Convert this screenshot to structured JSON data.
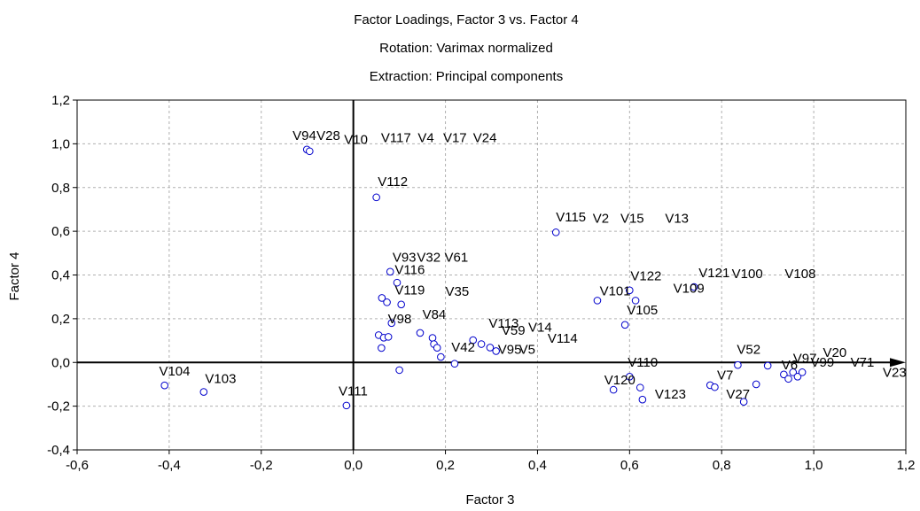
{
  "chart_data": {
    "type": "scatter",
    "title": "Factor Loadings, Factor 3 vs. Factor 4",
    "subtitle": "Rotation: Varimax normalized",
    "subtitle2": "Extraction: Principal components",
    "xlabel": "Factor 3",
    "ylabel": "Factor 4",
    "xlim": [
      -0.6,
      1.2
    ],
    "ylim": [
      -0.4,
      1.2
    ],
    "grid": true,
    "x_ticks": [
      -0.6,
      -0.4,
      -0.2,
      0.0,
      0.2,
      0.4,
      0.6,
      0.8,
      1.0,
      1.2
    ],
    "y_ticks": [
      -0.4,
      -0.2,
      0.0,
      0.2,
      0.4,
      0.6,
      0.8,
      1.0,
      1.2
    ],
    "x_tick_labels": [
      "-0,6",
      "-0,4",
      "-0,2",
      "0,0",
      "0,2",
      "0,4",
      "0,6",
      "0,8",
      "1,0",
      "1,2"
    ],
    "y_tick_labels": [
      "-0,4",
      "-0,2",
      "0,0",
      "0,2",
      "0,4",
      "0,6",
      "0,8",
      "1,0",
      "1,2"
    ],
    "colors": {
      "point": "#0000cc",
      "grid": "#b0b0b0",
      "axis": "#000000"
    },
    "points": [
      {
        "x": -0.101,
        "y": 0.974
      },
      {
        "x": -0.095,
        "y": 0.966
      },
      {
        "x": 0.05,
        "y": 0.755
      },
      {
        "x": 0.44,
        "y": 0.595
      },
      {
        "x": 0.08,
        "y": 0.415
      },
      {
        "x": 0.095,
        "y": 0.365
      },
      {
        "x": 0.062,
        "y": 0.295
      },
      {
        "x": 0.073,
        "y": 0.275
      },
      {
        "x": 0.104,
        "y": 0.265
      },
      {
        "x": 0.083,
        "y": 0.18
      },
      {
        "x": 0.145,
        "y": 0.135
      },
      {
        "x": 0.055,
        "y": 0.125
      },
      {
        "x": 0.066,
        "y": 0.113
      },
      {
        "x": 0.076,
        "y": 0.117
      },
      {
        "x": 0.172,
        "y": 0.112
      },
      {
        "x": 0.175,
        "y": 0.084
      },
      {
        "x": 0.182,
        "y": 0.067
      },
      {
        "x": 0.061,
        "y": 0.066
      },
      {
        "x": 0.19,
        "y": 0.025
      },
      {
        "x": 0.22,
        "y": -0.006
      },
      {
        "x": 0.1,
        "y": -0.035
      },
      {
        "x": 0.26,
        "y": 0.102
      },
      {
        "x": 0.278,
        "y": 0.084
      },
      {
        "x": 0.297,
        "y": 0.068
      },
      {
        "x": 0.31,
        "y": 0.052
      },
      {
        "x": 0.53,
        "y": 0.283
      },
      {
        "x": 0.6,
        "y": 0.33
      },
      {
        "x": 0.613,
        "y": 0.283
      },
      {
        "x": 0.59,
        "y": 0.172
      },
      {
        "x": 0.74,
        "y": 0.345
      },
      {
        "x": 0.565,
        "y": -0.125
      },
      {
        "x": 0.6,
        "y": -0.065
      },
      {
        "x": 0.623,
        "y": -0.115
      },
      {
        "x": 0.628,
        "y": -0.17
      },
      {
        "x": 0.775,
        "y": -0.104
      },
      {
        "x": 0.785,
        "y": -0.113
      },
      {
        "x": 0.835,
        "y": -0.012
      },
      {
        "x": 0.848,
        "y": -0.18
      },
      {
        "x": 0.875,
        "y": -0.1
      },
      {
        "x": 0.9,
        "y": -0.015
      },
      {
        "x": 0.935,
        "y": -0.055
      },
      {
        "x": 0.945,
        "y": -0.075
      },
      {
        "x": 0.955,
        "y": -0.045
      },
      {
        "x": 0.965,
        "y": -0.065
      },
      {
        "x": 0.975,
        "y": -0.045
      },
      {
        "x": -0.41,
        "y": -0.105
      },
      {
        "x": -0.325,
        "y": -0.135
      },
      {
        "x": -0.015,
        "y": -0.197
      }
    ],
    "labels": [
      {
        "text": "V94",
        "x": -0.132,
        "y": 1.018
      },
      {
        "text": "V28",
        "x": -0.08,
        "y": 1.018
      },
      {
        "text": "V10",
        "x": -0.02,
        "y": 1.0
      },
      {
        "text": "V117",
        "x": 0.06,
        "y": 1.008
      },
      {
        "text": "V4",
        "x": 0.14,
        "y": 1.008
      },
      {
        "text": "V17",
        "x": 0.195,
        "y": 1.008
      },
      {
        "text": "V24",
        "x": 0.26,
        "y": 1.008
      },
      {
        "text": "V112",
        "x": 0.053,
        "y": 0.807
      },
      {
        "text": "V115",
        "x": 0.44,
        "y": 0.645
      },
      {
        "text": "V2",
        "x": 0.52,
        "y": 0.64
      },
      {
        "text": "V15",
        "x": 0.58,
        "y": 0.64
      },
      {
        "text": "V13",
        "x": 0.677,
        "y": 0.64
      },
      {
        "text": "V93",
        "x": 0.085,
        "y": 0.46
      },
      {
        "text": "V32",
        "x": 0.138,
        "y": 0.46
      },
      {
        "text": "V61",
        "x": 0.198,
        "y": 0.46
      },
      {
        "text": "V116",
        "x": 0.09,
        "y": 0.405
      },
      {
        "text": "V119",
        "x": 0.09,
        "y": 0.31
      },
      {
        "text": "V35",
        "x": 0.2,
        "y": 0.305
      },
      {
        "text": "V98",
        "x": 0.075,
        "y": 0.18
      },
      {
        "text": "V84",
        "x": 0.15,
        "y": 0.2
      },
      {
        "text": "V113",
        "x": 0.294,
        "y": 0.16
      },
      {
        "text": "V59",
        "x": 0.322,
        "y": 0.127
      },
      {
        "text": "V14",
        "x": 0.38,
        "y": 0.14
      },
      {
        "text": "V114",
        "x": 0.422,
        "y": 0.09
      },
      {
        "text": "V42",
        "x": 0.213,
        "y": 0.05
      },
      {
        "text": "V95",
        "x": 0.314,
        "y": 0.04
      },
      {
        "text": "V5",
        "x": 0.36,
        "y": 0.04
      },
      {
        "text": "V101",
        "x": 0.535,
        "y": 0.307
      },
      {
        "text": "V122",
        "x": 0.602,
        "y": 0.375
      },
      {
        "text": "V121",
        "x": 0.75,
        "y": 0.39
      },
      {
        "text": "V100",
        "x": 0.822,
        "y": 0.385
      },
      {
        "text": "V108",
        "x": 0.937,
        "y": 0.385
      },
      {
        "text": "V109",
        "x": 0.695,
        "y": 0.32
      },
      {
        "text": "V105",
        "x": 0.594,
        "y": 0.22
      },
      {
        "text": "V52",
        "x": 0.833,
        "y": 0.04
      },
      {
        "text": "V110",
        "x": 0.596,
        "y": -0.02
      },
      {
        "text": "V120",
        "x": 0.545,
        "y": -0.1
      },
      {
        "text": "V123",
        "x": 0.655,
        "y": -0.165
      },
      {
        "text": "V7",
        "x": 0.79,
        "y": -0.078
      },
      {
        "text": "V27",
        "x": 0.81,
        "y": -0.165
      },
      {
        "text": "V6",
        "x": 0.93,
        "y": -0.032
      },
      {
        "text": "V97",
        "x": 0.955,
        "y": 0.0
      },
      {
        "text": "V20",
        "x": 1.02,
        "y": 0.025
      },
      {
        "text": "V99",
        "x": 0.993,
        "y": -0.02
      },
      {
        "text": "V71",
        "x": 1.08,
        "y": -0.02
      },
      {
        "text": "V23",
        "x": 1.15,
        "y": -0.065
      },
      {
        "text": "V104",
        "x": -0.422,
        "y": -0.06
      },
      {
        "text": "V103",
        "x": -0.322,
        "y": -0.095
      },
      {
        "text": "V111",
        "x": -0.032,
        "y": -0.15
      }
    ]
  }
}
